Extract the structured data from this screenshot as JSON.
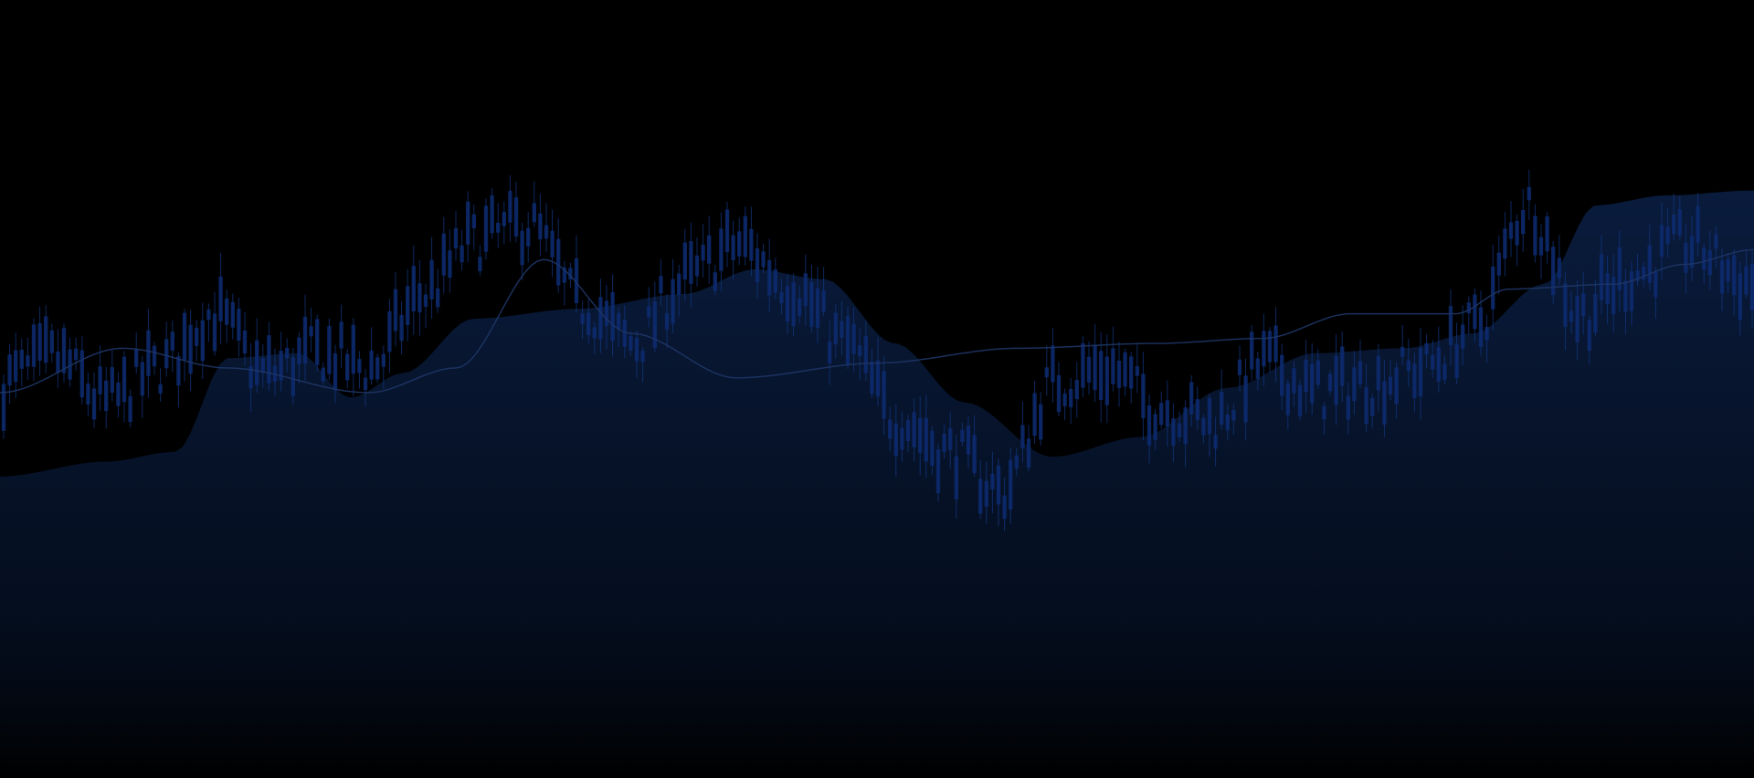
{
  "chart_data": {
    "type": "candlestick",
    "title": "",
    "xlabel": "",
    "ylabel": "",
    "grid": false,
    "legend": "none",
    "colors": {
      "background": "#000000",
      "candle": "#0d2a6e",
      "wick": "#123680",
      "area_top": "#0a1d40",
      "area_bottom": "#000000",
      "line": "#1e3566"
    },
    "candles_shape": [
      [
        0.0,
        0.52
      ],
      [
        0.03,
        0.57
      ],
      [
        0.06,
        0.48
      ],
      [
        0.09,
        0.55
      ],
      [
        0.12,
        0.66
      ],
      [
        0.15,
        0.54
      ],
      [
        0.18,
        0.58
      ],
      [
        0.21,
        0.55
      ],
      [
        0.24,
        0.7
      ],
      [
        0.27,
        0.81
      ],
      [
        0.3,
        0.84
      ],
      [
        0.33,
        0.68
      ],
      [
        0.36,
        0.6
      ],
      [
        0.39,
        0.73
      ],
      [
        0.42,
        0.8
      ],
      [
        0.45,
        0.72
      ],
      [
        0.48,
        0.6
      ],
      [
        0.51,
        0.45
      ],
      [
        0.54,
        0.38
      ],
      [
        0.57,
        0.3
      ],
      [
        0.6,
        0.52
      ],
      [
        0.63,
        0.55
      ],
      [
        0.66,
        0.47
      ],
      [
        0.69,
        0.44
      ],
      [
        0.72,
        0.56
      ],
      [
        0.75,
        0.5
      ],
      [
        0.78,
        0.52
      ],
      [
        0.81,
        0.55
      ],
      [
        0.84,
        0.63
      ],
      [
        0.87,
        0.88
      ],
      [
        0.9,
        0.66
      ],
      [
        0.93,
        0.74
      ],
      [
        0.96,
        0.8
      ],
      [
        1.0,
        0.72
      ]
    ],
    "wave_line": [
      [
        0.0,
        0.5
      ],
      [
        0.07,
        0.59
      ],
      [
        0.13,
        0.55
      ],
      [
        0.21,
        0.5
      ],
      [
        0.26,
        0.55
      ],
      [
        0.31,
        0.77
      ],
      [
        0.36,
        0.62
      ],
      [
        0.42,
        0.53
      ],
      [
        0.5,
        0.56
      ],
      [
        0.58,
        0.59
      ],
      [
        0.66,
        0.6
      ],
      [
        0.72,
        0.61
      ],
      [
        0.77,
        0.66
      ],
      [
        0.83,
        0.66
      ],
      [
        0.86,
        0.71
      ],
      [
        0.92,
        0.72
      ],
      [
        0.96,
        0.76
      ],
      [
        1.0,
        0.79
      ]
    ],
    "area_upper": [
      [
        0.0,
        0.33
      ],
      [
        0.06,
        0.36
      ],
      [
        0.1,
        0.38
      ],
      [
        0.13,
        0.57
      ],
      [
        0.17,
        0.58
      ],
      [
        0.2,
        0.49
      ],
      [
        0.23,
        0.54
      ],
      [
        0.27,
        0.65
      ],
      [
        0.33,
        0.67
      ],
      [
        0.39,
        0.7
      ],
      [
        0.43,
        0.75
      ],
      [
        0.47,
        0.73
      ],
      [
        0.51,
        0.6
      ],
      [
        0.55,
        0.48
      ],
      [
        0.6,
        0.37
      ],
      [
        0.65,
        0.41
      ],
      [
        0.7,
        0.51
      ],
      [
        0.75,
        0.58
      ],
      [
        0.8,
        0.59
      ],
      [
        0.84,
        0.62
      ],
      [
        0.88,
        0.72
      ],
      [
        0.91,
        0.88
      ],
      [
        0.95,
        0.9
      ],
      [
        1.0,
        0.91
      ]
    ]
  }
}
